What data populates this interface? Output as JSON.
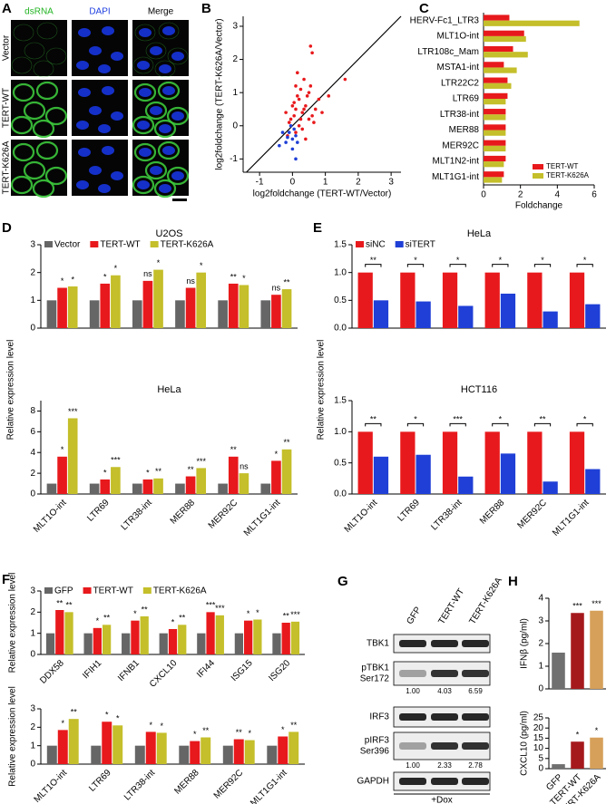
{
  "panel_labels": [
    "A",
    "B",
    "C",
    "D",
    "E",
    "F",
    "G",
    "H"
  ],
  "image_panel": {
    "channels": [
      "dsRNA",
      "DAPI",
      "Merge"
    ],
    "conditions": [
      "Vector",
      "TERT-WT",
      "TERT-K626A"
    ]
  },
  "blot": {
    "columns": [
      "GFP",
      "TERT-WT",
      "TERT-K626A"
    ],
    "rows": [
      {
        "label": "TBK1"
      },
      {
        "label": "pTBK1",
        "sublabel": "Ser172",
        "quant": [
          "1.00",
          "4.03",
          "6.59"
        ]
      },
      {
        "label": "IRF3"
      },
      {
        "label": "pIRF3",
        "sublabel": "Ser396",
        "quant": [
          "1.00",
          "2.33",
          "2.78"
        ]
      },
      {
        "label": "GAPDH"
      }
    ],
    "treatment": "+Dox"
  },
  "chart_data": [
    {
      "type": "scatter",
      "xlabel": "log2foldchange (TERT-WT/Vector)",
      "ylabel": "log2foldchange (TERT-K626A/Vector)",
      "xlim": [
        -1.5,
        3.3
      ],
      "ylim": [
        -1.4,
        3.3
      ],
      "xticks": [
        -1,
        0,
        1,
        2,
        3
      ],
      "yticks": [
        -1,
        0,
        1,
        2,
        3
      ],
      "series": [
        {
          "color": "#e8191c",
          "x": [
            0.05,
            0.1,
            -0.1,
            0.2,
            0.3,
            0.15,
            -0.05,
            0.25,
            0.4,
            0.5,
            0.6,
            0.35,
            0.1,
            0.2,
            -0.2,
            0.45,
            0.7,
            0.55,
            0.05,
            0.3,
            1.1,
            1.6,
            0.6,
            0.8,
            0.15,
            0.25,
            -0.15,
            0.35,
            0.5,
            0.9,
            0.1,
            0.55,
            0.4,
            0.0,
            0.65
          ],
          "y": [
            0.3,
            0.5,
            0.1,
            0.8,
            0.4,
            0.9,
            0.2,
            1.1,
            0.6,
            0.2,
            0.3,
            1.4,
            -0.2,
            0.0,
            0.4,
            0.9,
            0.5,
            1.2,
            0.7,
            -0.1,
            0.9,
            1.4,
            2.2,
            0.8,
            1.6,
            0.2,
            -0.3,
            0.5,
            1.0,
            0.4,
            1.2,
            2.4,
            -0.4,
            0.6,
            0.1
          ]
        },
        {
          "color": "#1f3fd6",
          "x": [
            -0.1,
            0.0,
            0.05,
            -0.2,
            0.1,
            -0.3,
            0.0,
            -0.15,
            0.15,
            -0.05,
            -0.4,
            0.1
          ],
          "y": [
            -0.2,
            -0.4,
            -0.1,
            -0.5,
            -0.3,
            -0.2,
            -0.7,
            -0.35,
            -0.5,
            0.0,
            -0.6,
            -1.0
          ]
        }
      ]
    },
    {
      "type": "hbar",
      "xlabel": "Foldchange",
      "xlim": [
        0,
        6
      ],
      "xticks": [
        0,
        2,
        4,
        6
      ],
      "legend": "lower right",
      "categories": [
        "HERV-Fc1_LTR3",
        "MLT1O-int",
        "LTR108c_Mam",
        "MSTA1-int",
        "LTR22C2",
        "LTR69",
        "LTR38-int",
        "MER88",
        "MER92C",
        "MLT1N2-int",
        "MLT1G1-int"
      ],
      "series": [
        {
          "name": "TERT-WT",
          "color": "#e8191c",
          "values": [
            1.4,
            2.2,
            1.6,
            1.1,
            1.3,
            1.3,
            1.2,
            1.2,
            1.2,
            1.2,
            1.1
          ]
        },
        {
          "name": "TERT-K626A",
          "color": "#c4bf2a",
          "values": [
            5.2,
            2.3,
            2.4,
            1.8,
            1.5,
            1.2,
            1.2,
            1.2,
            1.2,
            1.1,
            1.0
          ]
        }
      ]
    },
    {
      "type": "bar",
      "title": "U2OS",
      "ylabel": "Relative expression level",
      "ylim": [
        0,
        3
      ],
      "yticks": [
        0,
        1,
        2,
        3
      ],
      "legend": "top",
      "categories": [
        null,
        null,
        null,
        null,
        null,
        null
      ],
      "series": [
        {
          "name": "Vector",
          "color": "#666666",
          "values": [
            1.0,
            1.0,
            1.0,
            1.0,
            1.0,
            1.0
          ]
        },
        {
          "name": "TERT-WT",
          "color": "#e8191c",
          "values": [
            1.45,
            1.6,
            1.7,
            1.45,
            1.6,
            1.2
          ],
          "annotations": [
            "*",
            "*",
            "ns",
            "ns",
            "**",
            "ns"
          ]
        },
        {
          "name": "TERT-K626A",
          "color": "#c4bf2a",
          "values": [
            1.5,
            1.9,
            2.1,
            2.0,
            1.55,
            1.4
          ],
          "annotations": [
            "*",
            "*",
            "*",
            "*",
            "*",
            "**"
          ]
        }
      ]
    },
    {
      "type": "bar",
      "title": "HeLa",
      "ylim": [
        0,
        9
      ],
      "yticks": [
        0,
        2,
        4,
        6,
        8
      ],
      "categories": [
        "MLT1O-int",
        "LTR69",
        "LTR38-int",
        "MER88",
        "MER92C",
        "MLT1G1-int"
      ],
      "series": [
        {
          "color": "#666666",
          "values": [
            1.0,
            1.0,
            1.0,
            1.0,
            1.0,
            1.0
          ]
        },
        {
          "color": "#e8191c",
          "values": [
            3.6,
            1.4,
            1.4,
            1.7,
            3.6,
            3.2
          ],
          "annotations": [
            "*",
            "*",
            "*",
            "**",
            "**",
            "*"
          ]
        },
        {
          "color": "#c4bf2a",
          "values": [
            7.3,
            2.6,
            1.5,
            2.5,
            2.0,
            4.3
          ],
          "annotations": [
            "***",
            "***",
            "**",
            "***",
            "ns",
            "**"
          ]
        }
      ]
    },
    {
      "type": "bar",
      "title": "HeLa",
      "ylabel": "Relative expression level",
      "ylim": [
        0,
        1.5
      ],
      "yticks": [
        {
          "value": 0,
          "label": "0.0"
        },
        0.5,
        {
          "value": 1,
          "label": "1.0"
        },
        1.5
      ],
      "legend": "top",
      "categories": [
        null,
        null,
        null,
        null,
        null,
        null
      ],
      "annotations": [
        "**",
        "*",
        "*",
        "*",
        "*",
        "*"
      ],
      "series": [
        {
          "name": "siNC",
          "color": "#e8191c",
          "values": [
            1.0,
            1.0,
            1.0,
            1.0,
            1.0,
            1.0
          ]
        },
        {
          "name": "siTERT",
          "color": "#1f3fd6",
          "values": [
            0.5,
            0.48,
            0.4,
            0.62,
            0.3,
            0.43
          ]
        }
      ]
    },
    {
      "type": "bar",
      "title": "HCT116",
      "ylim": [
        0,
        1.5
      ],
      "yticks": [
        {
          "value": 0,
          "label": "0.0"
        },
        0.5,
        {
          "value": 1,
          "label": "1.0"
        },
        1.5
      ],
      "categories": [
        "MLT1O-int",
        "LTR69",
        "LTR38-int",
        "MER88",
        "MER92C",
        "MLT1G1-int"
      ],
      "annotations": [
        "**",
        "*",
        "***",
        "*",
        "**",
        "*"
      ],
      "series": [
        {
          "color": "#e8191c",
          "values": [
            1.0,
            1.0,
            1.0,
            1.0,
            1.0,
            1.0
          ]
        },
        {
          "color": "#1f3fd6",
          "values": [
            0.6,
            0.63,
            0.28,
            0.65,
            0.2,
            0.4
          ]
        }
      ]
    },
    {
      "type": "bar",
      "ylabel": "Relative expression level",
      "ylim": [
        0,
        3
      ],
      "yticks": [
        0,
        1,
        2,
        3
      ],
      "legend": "top",
      "categories": [
        "DDX58",
        "IFIH1",
        "IFNB1",
        "CXCL10",
        "IFI44",
        "ISG15",
        "ISG20"
      ],
      "series": [
        {
          "name": "GFP",
          "color": "#666666",
          "values": [
            1.0,
            1.0,
            1.0,
            1.0,
            1.0,
            1.0,
            1.0
          ]
        },
        {
          "name": "TERT-WT",
          "color": "#e8191c",
          "values": [
            2.1,
            1.25,
            1.6,
            1.2,
            2.0,
            1.6,
            1.5
          ],
          "annotations": [
            "**",
            "*",
            "*",
            "*",
            "***",
            "*",
            "**"
          ]
        },
        {
          "name": "TERT-K626A",
          "color": "#c4bf2a",
          "values": [
            2.0,
            1.4,
            1.8,
            1.4,
            1.85,
            1.65,
            1.55
          ],
          "annotations": [
            "**",
            "**",
            "**",
            "**",
            "***",
            "*",
            "***"
          ]
        }
      ]
    },
    {
      "type": "bar",
      "ylabel": "Relative expression level",
      "ylim": [
        0,
        3
      ],
      "yticks": [
        0,
        1,
        2,
        3
      ],
      "categories": [
        "MLT1O-int",
        "LTR69",
        "LTR38-int",
        "MER88",
        "MER92C",
        "MLT1G1-int"
      ],
      "series": [
        {
          "color": "#666666",
          "values": [
            1.0,
            1.0,
            1.0,
            1.0,
            1.0,
            1.0
          ]
        },
        {
          "color": "#e8191c",
          "values": [
            1.85,
            2.3,
            1.75,
            1.25,
            1.35,
            1.5
          ],
          "annotations": [
            "*",
            "*",
            "*",
            "*",
            "**",
            "*"
          ]
        },
        {
          "color": "#c4bf2a",
          "values": [
            2.45,
            2.1,
            1.7,
            1.45,
            1.3,
            1.75
          ],
          "annotations": [
            "**",
            "*",
            "*",
            "**",
            "*",
            "**"
          ]
        }
      ]
    },
    {
      "type": "bar",
      "ylabel": "IFNβ (pg/ml)",
      "ylim": [
        0,
        4
      ],
      "yticks": [
        0,
        1,
        2,
        3,
        4
      ],
      "categories": [
        null,
        null,
        null
      ],
      "series": [
        {
          "colors": [
            "#707070",
            "#a5191c",
            "#d6a05a"
          ],
          "values": [
            1.6,
            3.35,
            3.45
          ],
          "annotations": [
            null,
            "***",
            "***"
          ]
        }
      ]
    },
    {
      "type": "bar",
      "ylabel": "CXCL10 (pg/ml)",
      "ylim": [
        0,
        25
      ],
      "yticks": [
        0,
        5,
        10,
        15,
        20,
        25
      ],
      "categories": [
        "GFP",
        "TERT-WT",
        "TERT-K626A"
      ],
      "series": [
        {
          "colors": [
            "#707070",
            "#a5191c",
            "#d6a05a"
          ],
          "values": [
            2.2,
            13.3,
            15.3
          ],
          "annotations": [
            null,
            "*",
            "*"
          ]
        }
      ]
    }
  ]
}
